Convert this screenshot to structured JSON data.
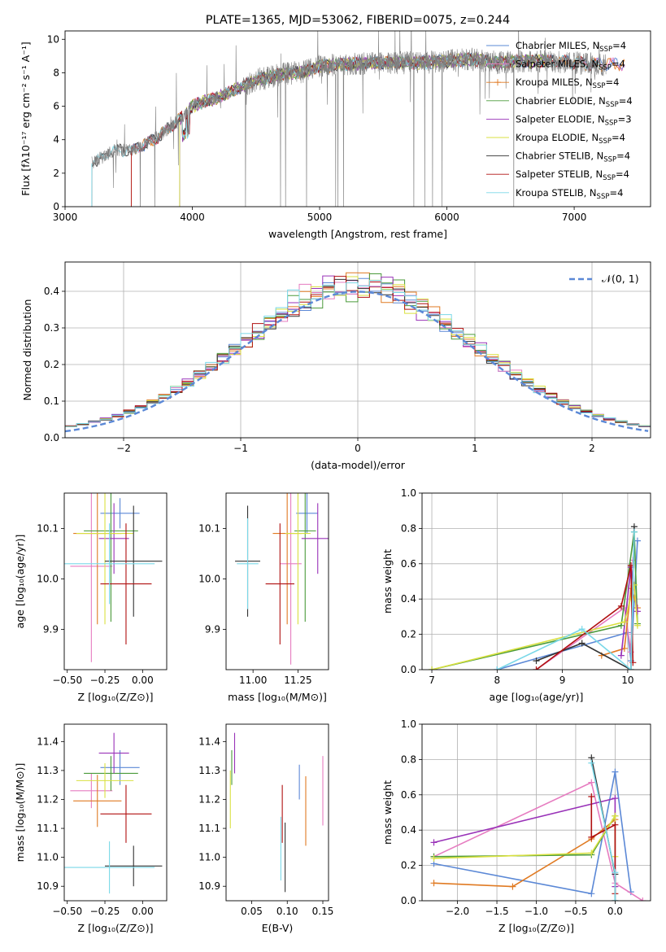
{
  "colors": {
    "chabrier_miles": "#5b88d6",
    "salpeter_miles": "#e67cc0",
    "kroupa_miles": "#e07a22",
    "chabrier_elodie": "#4a9a3a",
    "salpeter_elodie": "#9932b8",
    "kroupa_elodie": "#d9e040",
    "chabrier_stelib": "#333333",
    "salpeter_stelib": "#b01010",
    "kroupa_stelib": "#7ad8e8",
    "observed": "#808080",
    "grid": "#b0b0b0"
  },
  "chart_data": [
    {
      "id": "spectrum",
      "type": "line",
      "title": "PLATE=1365, MJD=53062, FIBERID=0075, z=0.244",
      "xlabel": "wavelength [Angstrom, rest frame]",
      "ylabel": "Flux [fλ10⁻¹⁷ erg cm⁻² s⁻¹ A⁻¹]",
      "xlim": [
        3000,
        7600
      ],
      "ylim": [
        0,
        10.5
      ],
      "xticks": [
        3000,
        4000,
        5000,
        6000,
        7000
      ],
      "yticks": [
        0,
        2,
        4,
        6,
        8,
        10
      ],
      "grid": false,
      "legend": "top-right",
      "continuum": {
        "x": [
          3200,
          3210,
          3300,
          3400,
          3500,
          3600,
          3700,
          3800,
          3900,
          4000,
          4100,
          4200,
          4300,
          4400,
          4500,
          4600,
          4700,
          4800,
          4900,
          5000,
          5200,
          5400,
          5600,
          5800,
          6000,
          6200,
          6400,
          6600,
          6800,
          7000,
          7200
        ],
        "y": [
          0.0,
          2.6,
          3.0,
          3.4,
          3.3,
          3.6,
          4.0,
          4.6,
          5.2,
          6.0,
          6.3,
          6.5,
          6.9,
          7.2,
          7.6,
          7.7,
          7.9,
          8.0,
          8.1,
          8.4,
          8.5,
          8.6,
          8.6,
          8.6,
          8.7,
          8.8,
          8.6,
          8.7,
          8.7,
          8.6,
          8.5
        ]
      },
      "series": [
        {
          "name": "Chabrier MILES, N_SSP=4",
          "color_key": "chabrier_miles"
        },
        {
          "name": "Salpeter MILES, N_SSP=4",
          "color_key": "salpeter_miles"
        },
        {
          "name": "Kroupa MILES, N_SSP=4",
          "color_key": "kroupa_miles"
        },
        {
          "name": "Chabrier ELODIE, N_SSP=4",
          "color_key": "chabrier_elodie"
        },
        {
          "name": "Salpeter ELODIE, N_SSP=3",
          "color_key": "salpeter_elodie"
        },
        {
          "name": "Kroupa ELODIE, N_SSP=4",
          "color_key": "kroupa_elodie"
        },
        {
          "name": "Chabrier STELIB, N_SSP=4",
          "color_key": "chabrier_stelib"
        },
        {
          "name": "Salpeter STELIB, N_SSP=4",
          "color_key": "salpeter_stelib"
        },
        {
          "name": "Kroupa STELIB, N_SSP=4",
          "color_key": "kroupa_stelib"
        }
      ],
      "legend_labels": [
        {
          "pre": "Chabrier MILES, N",
          "sub": "SSP",
          "post": "=4"
        },
        {
          "pre": "Salpeter MILES, N",
          "sub": "SSP",
          "post": "=4"
        },
        {
          "pre": "Kroupa MILES, N",
          "sub": "SSP",
          "post": "=4"
        },
        {
          "pre": "Chabrier ELODIE, N",
          "sub": "SSP",
          "post": "=4"
        },
        {
          "pre": "Salpeter ELODIE, N",
          "sub": "SSP",
          "post": "=3"
        },
        {
          "pre": "Kroupa ELODIE, N",
          "sub": "SSP",
          "post": "=4"
        },
        {
          "pre": "Chabrier STELIB, N",
          "sub": "SSP",
          "post": "=4"
        },
        {
          "pre": "Salpeter STELIB, N",
          "sub": "SSP",
          "post": "=4"
        },
        {
          "pre": "Kroupa STELIB, N",
          "sub": "SSP",
          "post": "=4"
        }
      ]
    },
    {
      "id": "residuals",
      "type": "line",
      "xlabel": "(data-model)/error",
      "ylabel": "Normed distribution",
      "xlim": [
        -2.5,
        2.5
      ],
      "ylim": [
        0,
        0.48
      ],
      "xticks": [
        -2,
        -1,
        0,
        1,
        2
      ],
      "xtick_labels": [
        "−2",
        "−1",
        "0",
        "1",
        "2"
      ],
      "yticks": [
        0.0,
        0.1,
        0.2,
        0.3,
        0.4
      ],
      "ytick_labels": [
        "0.0",
        "0.1",
        "0.2",
        "0.3",
        "0.4"
      ],
      "grid": true,
      "legend": "top-right",
      "gaussian_label": "𝒩(0, 1)",
      "bin_width": 0.1
    },
    {
      "id": "age_vs_z",
      "type": "scatter",
      "xlabel": "Z [log₁₀(Z/Z⊙)]",
      "ylabel": "age  [log₁₀(age/yr)]",
      "xlim": [
        -0.52,
        0.16
      ],
      "ylim": [
        9.82,
        10.17
      ],
      "xticks": [
        -0.5,
        -0.25,
        0.0
      ],
      "xtick_labels": [
        "−0.50",
        "−0.25",
        "0.00"
      ],
      "yticks": [
        9.9,
        10.0,
        10.1
      ],
      "ytick_labels": [
        "9.9",
        "10.0",
        "10.1"
      ],
      "grid": false,
      "points": [
        {
          "key": "chabrier_miles",
          "x": -0.15,
          "xerr": 0.13,
          "y": 10.13,
          "yerr": 0.03
        },
        {
          "key": "salpeter_miles",
          "x": -0.34,
          "xerr": 0.14,
          "y": 10.025,
          "yerr": 0.19
        },
        {
          "key": "kroupa_miles",
          "x": -0.3,
          "xerr": 0.16,
          "y": 10.09,
          "yerr": 0.18
        },
        {
          "key": "chabrier_elodie",
          "x": -0.21,
          "xerr": 0.18,
          "y": 10.095,
          "yerr": 0.18
        },
        {
          "key": "salpeter_elodie",
          "x": -0.19,
          "xerr": 0.1,
          "y": 10.08,
          "yerr": 0.07
        },
        {
          "key": "kroupa_elodie",
          "x": -0.25,
          "xerr": 0.19,
          "y": 10.09,
          "yerr": 0.18
        },
        {
          "key": "chabrier_stelib",
          "x": -0.06,
          "xerr": 0.19,
          "y": 10.035,
          "yerr": 0.11
        },
        {
          "key": "salpeter_stelib",
          "x": -0.11,
          "xerr": 0.17,
          "y": 9.99,
          "yerr": 0.12
        },
        {
          "key": "kroupa_stelib",
          "x": -0.22,
          "xerr": 0.3,
          "y": 10.03,
          "yerr": 0.08
        }
      ]
    },
    {
      "id": "age_vs_mass",
      "type": "scatter",
      "xlabel": "mass [log₁₀(M/M⊙)]",
      "xlim": [
        10.85,
        11.42
      ],
      "ylim": [
        9.82,
        10.17
      ],
      "xticks": [
        11.0,
        11.25
      ],
      "xtick_labels": [
        "11.00",
        "11.25"
      ],
      "yticks": [
        9.9,
        10.0,
        10.1
      ],
      "ytick_labels": [
        "9.9",
        "10.0",
        "10.1"
      ],
      "grid": false,
      "points": [
        {
          "key": "chabrier_miles",
          "x": 11.3,
          "xerr": 0.06,
          "y": 10.13,
          "yerr": 0.04
        },
        {
          "key": "salpeter_miles",
          "x": 11.21,
          "xerr": 0.06,
          "y": 10.03,
          "yerr": 0.2
        },
        {
          "key": "kroupa_miles",
          "x": 11.19,
          "xerr": 0.08,
          "y": 10.09,
          "yerr": 0.18
        },
        {
          "key": "chabrier_elodie",
          "x": 11.29,
          "xerr": 0.06,
          "y": 10.095,
          "yerr": 0.18
        },
        {
          "key": "salpeter_elodie",
          "x": 11.36,
          "xerr": 0.09,
          "y": 10.08,
          "yerr": 0.07
        },
        {
          "key": "kroupa_elodie",
          "x": 11.25,
          "xerr": 0.07,
          "y": 10.09,
          "yerr": 0.18
        },
        {
          "key": "chabrier_stelib",
          "x": 10.97,
          "xerr": 0.07,
          "y": 10.035,
          "yerr": 0.11
        },
        {
          "key": "salpeter_stelib",
          "x": 11.15,
          "xerr": 0.08,
          "y": 9.99,
          "yerr": 0.12
        },
        {
          "key": "kroupa_stelib",
          "x": 10.97,
          "xerr": 0.06,
          "y": 10.03,
          "yerr": 0.09
        }
      ]
    },
    {
      "id": "weight_vs_age",
      "type": "line",
      "xlabel": "age  [log₁₀(age/yr)]",
      "ylabel": "mass weight",
      "xlim": [
        6.85,
        10.35
      ],
      "ylim": [
        0,
        1.0
      ],
      "xticks": [
        7,
        8,
        9,
        10
      ],
      "yticks": [
        0.0,
        0.2,
        0.4,
        0.6,
        0.8,
        1.0
      ],
      "ytick_labels": [
        "0.0",
        "0.2",
        "0.4",
        "0.6",
        "0.8",
        "1.0"
      ],
      "grid": true,
      "series": [
        {
          "key": "chabrier_miles",
          "x": [
            8.0,
            10.0,
            10.05,
            10.15
          ],
          "y": [
            0.0,
            0.21,
            0.05,
            0.73
          ]
        },
        {
          "key": "salpeter_miles",
          "x": [
            8.6,
            9.95,
            10.05,
            10.08
          ],
          "y": [
            0.0,
            0.35,
            0.1,
            0.62
          ]
        },
        {
          "key": "kroupa_miles",
          "x": [
            9.6,
            9.95,
            10.05,
            10.15
          ],
          "y": [
            0.08,
            0.12,
            0.46,
            0.35
          ]
        },
        {
          "key": "chabrier_elodie",
          "x": [
            7.0,
            9.9,
            10.1,
            10.15
          ],
          "y": [
            0.0,
            0.25,
            0.78,
            0.26
          ]
        },
        {
          "key": "salpeter_elodie",
          "x": [
            9.9,
            10.05,
            10.15
          ],
          "y": [
            0.08,
            0.58,
            0.33
          ]
        },
        {
          "key": "kroupa_elodie",
          "x": [
            7.0,
            9.95,
            10.1,
            10.15
          ],
          "y": [
            0.0,
            0.27,
            0.48,
            0.25
          ]
        },
        {
          "key": "chabrier_stelib",
          "x": [
            8.6,
            9.3,
            10.05,
            10.1
          ],
          "y": [
            0.05,
            0.15,
            0.0,
            0.81
          ]
        },
        {
          "key": "salpeter_stelib",
          "x": [
            8.6,
            9.9,
            10.05,
            10.08
          ],
          "y": [
            0.0,
            0.36,
            0.59,
            0.04
          ]
        },
        {
          "key": "kroupa_stelib",
          "x": [
            8.0,
            9.3,
            10.05,
            10.1
          ],
          "y": [
            0.0,
            0.23,
            0.0,
            0.78
          ]
        }
      ]
    },
    {
      "id": "mass_vs_z",
      "type": "scatter",
      "xlabel": "Z [log₁₀(Z/Z⊙)]",
      "ylabel": "mass [log₁₀(M/M⊙)]",
      "xlim": [
        -0.52,
        0.16
      ],
      "ylim": [
        10.85,
        11.46
      ],
      "xticks": [
        -0.5,
        -0.25,
        0.0
      ],
      "xtick_labels": [
        "−0.50",
        "−0.25",
        "0.00"
      ],
      "yticks": [
        10.9,
        11.0,
        11.1,
        11.2,
        11.3,
        11.4
      ],
      "ytick_labels": [
        "10.9",
        "11.0",
        "11.1",
        "11.2",
        "11.3",
        "11.4"
      ],
      "grid": false,
      "points": [
        {
          "key": "chabrier_miles",
          "x": -0.15,
          "xerr": 0.13,
          "y": 11.31,
          "yerr": 0.06
        },
        {
          "key": "salpeter_miles",
          "x": -0.34,
          "xerr": 0.14,
          "y": 11.23,
          "yerr": 0.06
        },
        {
          "key": "kroupa_miles",
          "x": -0.3,
          "xerr": 0.16,
          "y": 11.195,
          "yerr": 0.09
        },
        {
          "key": "chabrier_elodie",
          "x": -0.21,
          "xerr": 0.18,
          "y": 11.29,
          "yerr": 0.06
        },
        {
          "key": "salpeter_elodie",
          "x": -0.19,
          "xerr": 0.1,
          "y": 11.36,
          "yerr": 0.07
        },
        {
          "key": "kroupa_elodie",
          "x": -0.25,
          "xerr": 0.19,
          "y": 11.265,
          "yerr": 0.06
        },
        {
          "key": "chabrier_stelib",
          "x": -0.06,
          "xerr": 0.19,
          "y": 10.97,
          "yerr": 0.07
        },
        {
          "key": "salpeter_stelib",
          "x": -0.11,
          "xerr": 0.17,
          "y": 11.15,
          "yerr": 0.1
        },
        {
          "key": "kroupa_stelib",
          "x": -0.22,
          "xerr": 0.3,
          "y": 10.965,
          "yerr": 0.09
        }
      ]
    },
    {
      "id": "mass_vs_ebv",
      "type": "scatter",
      "xlabel": "E(B-V)",
      "xlim": [
        0.014,
        0.158
      ],
      "ylim": [
        10.85,
        11.46
      ],
      "xticks": [
        0.05,
        0.1,
        0.15
      ],
      "xtick_labels": [
        "0.05",
        "0.10",
        "0.15"
      ],
      "yticks": [
        10.9,
        11.0,
        11.1,
        11.2,
        11.3,
        11.4
      ],
      "ytick_labels": [
        "10.9",
        "11.0",
        "11.1",
        "11.2",
        "11.3",
        "11.4"
      ],
      "grid": false,
      "points": [
        {
          "key": "chabrier_miles",
          "x": 0.117,
          "y": 11.26,
          "yerr": 0.06
        },
        {
          "key": "salpeter_miles",
          "x": 0.15,
          "y": 11.23,
          "yerr": 0.12
        },
        {
          "key": "kroupa_miles",
          "x": 0.126,
          "y": 11.16,
          "yerr": 0.12
        },
        {
          "key": "chabrier_elodie",
          "x": 0.022,
          "y": 11.31,
          "yerr": 0.06
        },
        {
          "key": "salpeter_elodie",
          "x": 0.026,
          "y": 11.36,
          "yerr": 0.07
        },
        {
          "key": "kroupa_elodie",
          "x": 0.02,
          "y": 11.2,
          "yerr": 0.1
        },
        {
          "key": "chabrier_stelib",
          "x": 0.097,
          "y": 11.0,
          "yerr": 0.12
        },
        {
          "key": "salpeter_stelib",
          "x": 0.093,
          "y": 11.15,
          "yerr": 0.1
        },
        {
          "key": "kroupa_stelib",
          "x": 0.091,
          "y": 11.03,
          "yerr": 0.11
        }
      ]
    },
    {
      "id": "weight_vs_z",
      "type": "line",
      "xlabel": "Z [log₁₀(Z/Z⊙)]",
      "ylabel": "mass weight",
      "xlim": [
        -2.45,
        0.45
      ],
      "ylim": [
        0,
        1.0
      ],
      "xticks": [
        -2.0,
        -1.5,
        -1.0,
        -0.5,
        0.0
      ],
      "xtick_labels": [
        "−2.0",
        "−1.5",
        "−1.0",
        "−0.5",
        "0.0"
      ],
      "yticks": [
        0.0,
        0.2,
        0.4,
        0.6,
        0.8,
        1.0
      ],
      "ytick_labels": [
        "0.0",
        "0.2",
        "0.4",
        "0.6",
        "0.8",
        "1.0"
      ],
      "grid": true,
      "series": [
        {
          "key": "chabrier_miles",
          "x": [
            -2.3,
            -0.3,
            0.0,
            0.2
          ],
          "y": [
            0.21,
            0.04,
            0.73,
            0.05
          ]
        },
        {
          "key": "salpeter_miles",
          "x": [
            -2.3,
            -0.3,
            0.0,
            0.35
          ],
          "y": [
            0.25,
            0.67,
            0.1,
            0.0
          ]
        },
        {
          "key": "kroupa_miles",
          "x": [
            -2.3,
            -1.3,
            -0.3,
            0.0
          ],
          "y": [
            0.1,
            0.08,
            0.35,
            0.46
          ]
        },
        {
          "key": "chabrier_elodie",
          "x": [
            -2.3,
            -0.3,
            0.0
          ],
          "y": [
            0.25,
            0.26,
            0.48
          ]
        },
        {
          "key": "salpeter_elodie",
          "x": [
            -2.3,
            0.0,
            0.0
          ],
          "y": [
            0.33,
            0.58,
            0.08
          ]
        },
        {
          "key": "kroupa_elodie",
          "x": [
            -2.3,
            -0.3,
            0.0,
            0.0
          ],
          "y": [
            0.24,
            0.27,
            0.48,
            0.25
          ]
        },
        {
          "key": "chabrier_stelib",
          "x": [
            -0.3,
            0.0,
            0.0
          ],
          "y": [
            0.81,
            0.15,
            0.0
          ]
        },
        {
          "key": "salpeter_stelib",
          "x": [
            -0.3,
            -0.3,
            0.0,
            0.0
          ],
          "y": [
            0.59,
            0.36,
            0.43,
            0.04
          ]
        },
        {
          "key": "kroupa_stelib",
          "x": [
            -0.3,
            0.0,
            0.0
          ],
          "y": [
            0.78,
            0.16,
            0.0
          ]
        }
      ]
    }
  ]
}
